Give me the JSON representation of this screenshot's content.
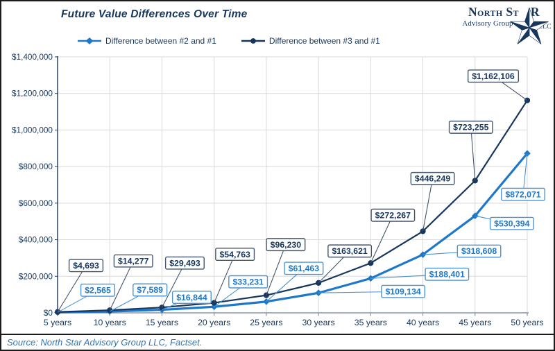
{
  "chart_data": {
    "type": "line",
    "title": "Future Value Differences Over Time",
    "categories": [
      "5 years",
      "10 years",
      "15 years",
      "20 years",
      "25 years",
      "30 years",
      "35 years",
      "40 years",
      "45 years",
      "50 years"
    ],
    "series": [
      {
        "name": "Difference between #2 and #1",
        "marker": "diamond",
        "color": "#1E78C8",
        "label_border": "#4A94D4",
        "label_text_color": "#1E78C8",
        "values": [
          2565,
          7589,
          16844,
          33231,
          61463,
          109134,
          188401,
          318608,
          530394,
          872071
        ],
        "labels": [
          "$2,565",
          "$7,589",
          "$16,844",
          "$33,231",
          "$61,463",
          "$109,134",
          "$188,401",
          "$318,608",
          "$530,394",
          "$872,071"
        ],
        "label_offsets": [
          [
            58,
            -32
          ],
          [
            58,
            -31
          ],
          [
            43,
            -18
          ],
          [
            49,
            -36
          ],
          [
            54,
            -48
          ],
          [
            122,
            -2
          ],
          [
            110,
            -6
          ],
          [
            81,
            -5
          ],
          [
            53,
            11
          ],
          [
            -6,
            59
          ]
        ]
      },
      {
        "name": "Difference between #3 and #1",
        "marker": "circle",
        "color": "#17365D",
        "label_border": "#44546A",
        "label_text_color": "#17365D",
        "values": [
          4693,
          14277,
          29493,
          54763,
          96230,
          163621,
          272267,
          446249,
          723255,
          1162106
        ],
        "labels": [
          "$4,693",
          "$14,277",
          "$29,493",
          "$54,763",
          "$96,230",
          "$163,621",
          "$272,267",
          "$446,249",
          "$723,255",
          "$1,162,106"
        ],
        "label_offsets": [
          [
            41,
            -67
          ],
          [
            34,
            -71
          ],
          [
            33,
            -64
          ],
          [
            30,
            -70
          ],
          [
            28,
            -73
          ],
          [
            45,
            -46
          ],
          [
            32,
            -69
          ],
          [
            14,
            -76
          ],
          [
            -6,
            -77
          ],
          [
            -49,
            -35
          ]
        ]
      }
    ],
    "ylim": [
      0,
      1400000
    ],
    "ytick_step": 200000,
    "ytick_labels": [
      "$0",
      "$200,000",
      "$400,000",
      "$600,000",
      "$800,000",
      "$1,000,000",
      "$1,200,000",
      "$1,400,000"
    ],
    "grid": true,
    "legend_position": "top",
    "xlabel": "",
    "ylabel": ""
  },
  "logo": {
    "name_prefix": "North St",
    "name_suffix": "R",
    "subtitle": "Advisory Group",
    "suffix_llc": "LLC"
  },
  "source_note": "Source: North Star Advisory Group LLC, Factset.",
  "colors": {
    "navy": "#17365D",
    "blue": "#1E78C8",
    "axis_line": "#8496B0",
    "gridline": "#D9D9D9",
    "source_text": "#2E75B6",
    "frame_border": "#1c1c1c",
    "background": "#FFFFFF"
  }
}
